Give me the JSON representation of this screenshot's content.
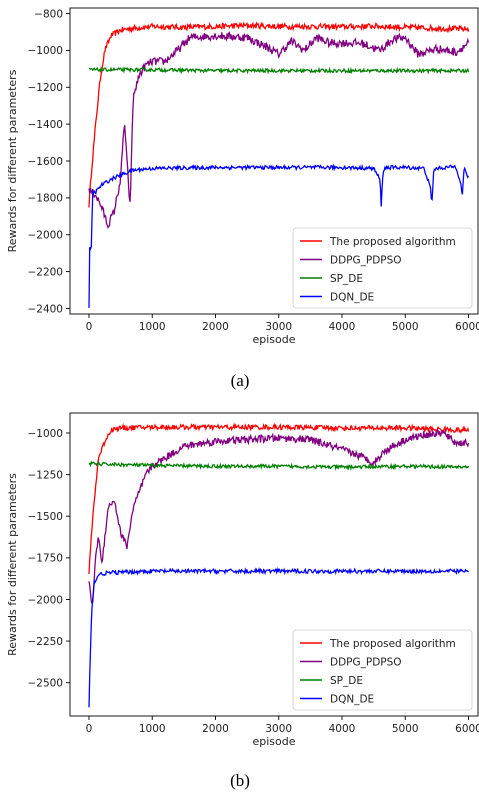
{
  "captions": [
    "(a)",
    "(b)"
  ],
  "chart_data": [
    {
      "type": "line",
      "xlabel": "episode",
      "ylabel": "Rewards for different parameters",
      "xlim": [
        -300,
        6150
      ],
      "ylim": [
        -2430,
        -770
      ],
      "xticks": [
        0,
        1000,
        2000,
        3000,
        4000,
        5000,
        6000
      ],
      "yticks": [
        -2400,
        -2200,
        -2000,
        -1800,
        -1600,
        -1400,
        -1200,
        -1000,
        -800
      ],
      "legend_position": "lower right",
      "grid": false,
      "series": [
        {
          "name": "The proposed algorithm",
          "color": "#ff0000",
          "x": [
            0,
            40,
            80,
            120,
            180,
            250,
            350,
            500,
            700,
            1000,
            1500,
            2000,
            2500,
            3000,
            3500,
            4000,
            4500,
            5000,
            5500,
            6000
          ],
          "y": [
            -1840,
            -1650,
            -1500,
            -1350,
            -1150,
            -1000,
            -920,
            -890,
            -880,
            -870,
            -875,
            -870,
            -865,
            -870,
            -870,
            -872,
            -868,
            -875,
            -880,
            -885
          ],
          "noise": 15
        },
        {
          "name": "DDPG_PDPSO",
          "color": "#800080",
          "x": [
            0,
            100,
            200,
            300,
            400,
            500,
            560,
            600,
            650,
            700,
            800,
            900,
            1000,
            1200,
            1400,
            1600,
            2000,
            2500,
            2800,
            3000,
            3200,
            3400,
            3600,
            3800,
            4000,
            4300,
            4600,
            4800,
            5000,
            5200,
            5500,
            5800,
            6000
          ],
          "y": [
            -1760,
            -1780,
            -1850,
            -1950,
            -1870,
            -1700,
            -1380,
            -1600,
            -1850,
            -1250,
            -1130,
            -1080,
            -1060,
            -1060,
            -1000,
            -930,
            -920,
            -930,
            -980,
            -1020,
            -950,
            -1000,
            -930,
            -960,
            -960,
            -960,
            -1000,
            -940,
            -930,
            -1020,
            -990,
            -1010,
            -960
          ],
          "noise": 22
        },
        {
          "name": "SP_DE",
          "color": "#008000",
          "x": [
            0,
            1000,
            2000,
            3000,
            4000,
            5000,
            6000
          ],
          "y": [
            -1105,
            -1105,
            -1110,
            -1110,
            -1110,
            -1110,
            -1110
          ],
          "noise": 9
        },
        {
          "name": "DQN_DE",
          "color": "#0000ff",
          "x": [
            0,
            15,
            30,
            60,
            100,
            200,
            400,
            700,
            1000,
            2000,
            3000,
            4000,
            4500,
            4600,
            4620,
            4650,
            4700,
            5000,
            5300,
            5400,
            5420,
            5450,
            5500,
            5800,
            5880,
            5900,
            5930,
            6000
          ],
          "y": [
            -2390,
            -1990,
            -2150,
            -1770,
            -1770,
            -1730,
            -1690,
            -1650,
            -1640,
            -1635,
            -1635,
            -1635,
            -1640,
            -1700,
            -1840,
            -1650,
            -1635,
            -1635,
            -1640,
            -1750,
            -1840,
            -1650,
            -1640,
            -1630,
            -1720,
            -1800,
            -1640,
            -1690
          ],
          "noise": 10
        }
      ]
    },
    {
      "type": "line",
      "xlabel": "episode",
      "ylabel": "Rewards for different parameters",
      "xlim": [
        -300,
        6150
      ],
      "ylim": [
        -2700,
        -880
      ],
      "xticks": [
        0,
        1000,
        2000,
        3000,
        4000,
        5000,
        6000
      ],
      "yticks": [
        -2500,
        -2250,
        -2000,
        -1750,
        -1500,
        -1250,
        -1000
      ],
      "legend_position": "lower right",
      "grid": false,
      "series": [
        {
          "name": "The proposed algorithm",
          "color": "#ff0000",
          "x": [
            0,
            40,
            80,
            150,
            250,
            350,
            500,
            1000,
            2000,
            3000,
            4000,
            5000,
            6000
          ],
          "y": [
            -1850,
            -1600,
            -1420,
            -1150,
            -1050,
            -980,
            -970,
            -965,
            -965,
            -965,
            -970,
            -970,
            -985
          ],
          "noise": 15
        },
        {
          "name": "DDPG_PDPSO",
          "color": "#800080",
          "x": [
            0,
            50,
            100,
            150,
            200,
            300,
            400,
            500,
            600,
            700,
            800,
            900,
            1000,
            1200,
            1500,
            2000,
            2500,
            3000,
            3500,
            4000,
            4300,
            4500,
            4700,
            5000,
            5300,
            5600,
            5800,
            6000
          ],
          "y": [
            -1880,
            -2050,
            -1780,
            -1600,
            -1800,
            -1450,
            -1400,
            -1600,
            -1680,
            -1450,
            -1350,
            -1250,
            -1200,
            -1150,
            -1080,
            -1050,
            -1040,
            -1030,
            -1040,
            -1100,
            -1140,
            -1180,
            -1100,
            -1040,
            -1010,
            -1000,
            -1060,
            -1060
          ],
          "noise": 22
        },
        {
          "name": "SP_DE",
          "color": "#008000",
          "x": [
            0,
            1000,
            2000,
            3000,
            4000,
            5000,
            6000
          ],
          "y": [
            -1185,
            -1195,
            -1200,
            -1200,
            -1205,
            -1200,
            -1205
          ],
          "noise": 10
        },
        {
          "name": "DQN_DE",
          "color": "#0000ff",
          "x": [
            0,
            20,
            40,
            80,
            150,
            300,
            1000,
            2000,
            3000,
            4000,
            5000,
            6000
          ],
          "y": [
            -2650,
            -2350,
            -2100,
            -1900,
            -1850,
            -1840,
            -1830,
            -1830,
            -1830,
            -1830,
            -1830,
            -1830
          ],
          "noise": 12
        }
      ]
    }
  ]
}
